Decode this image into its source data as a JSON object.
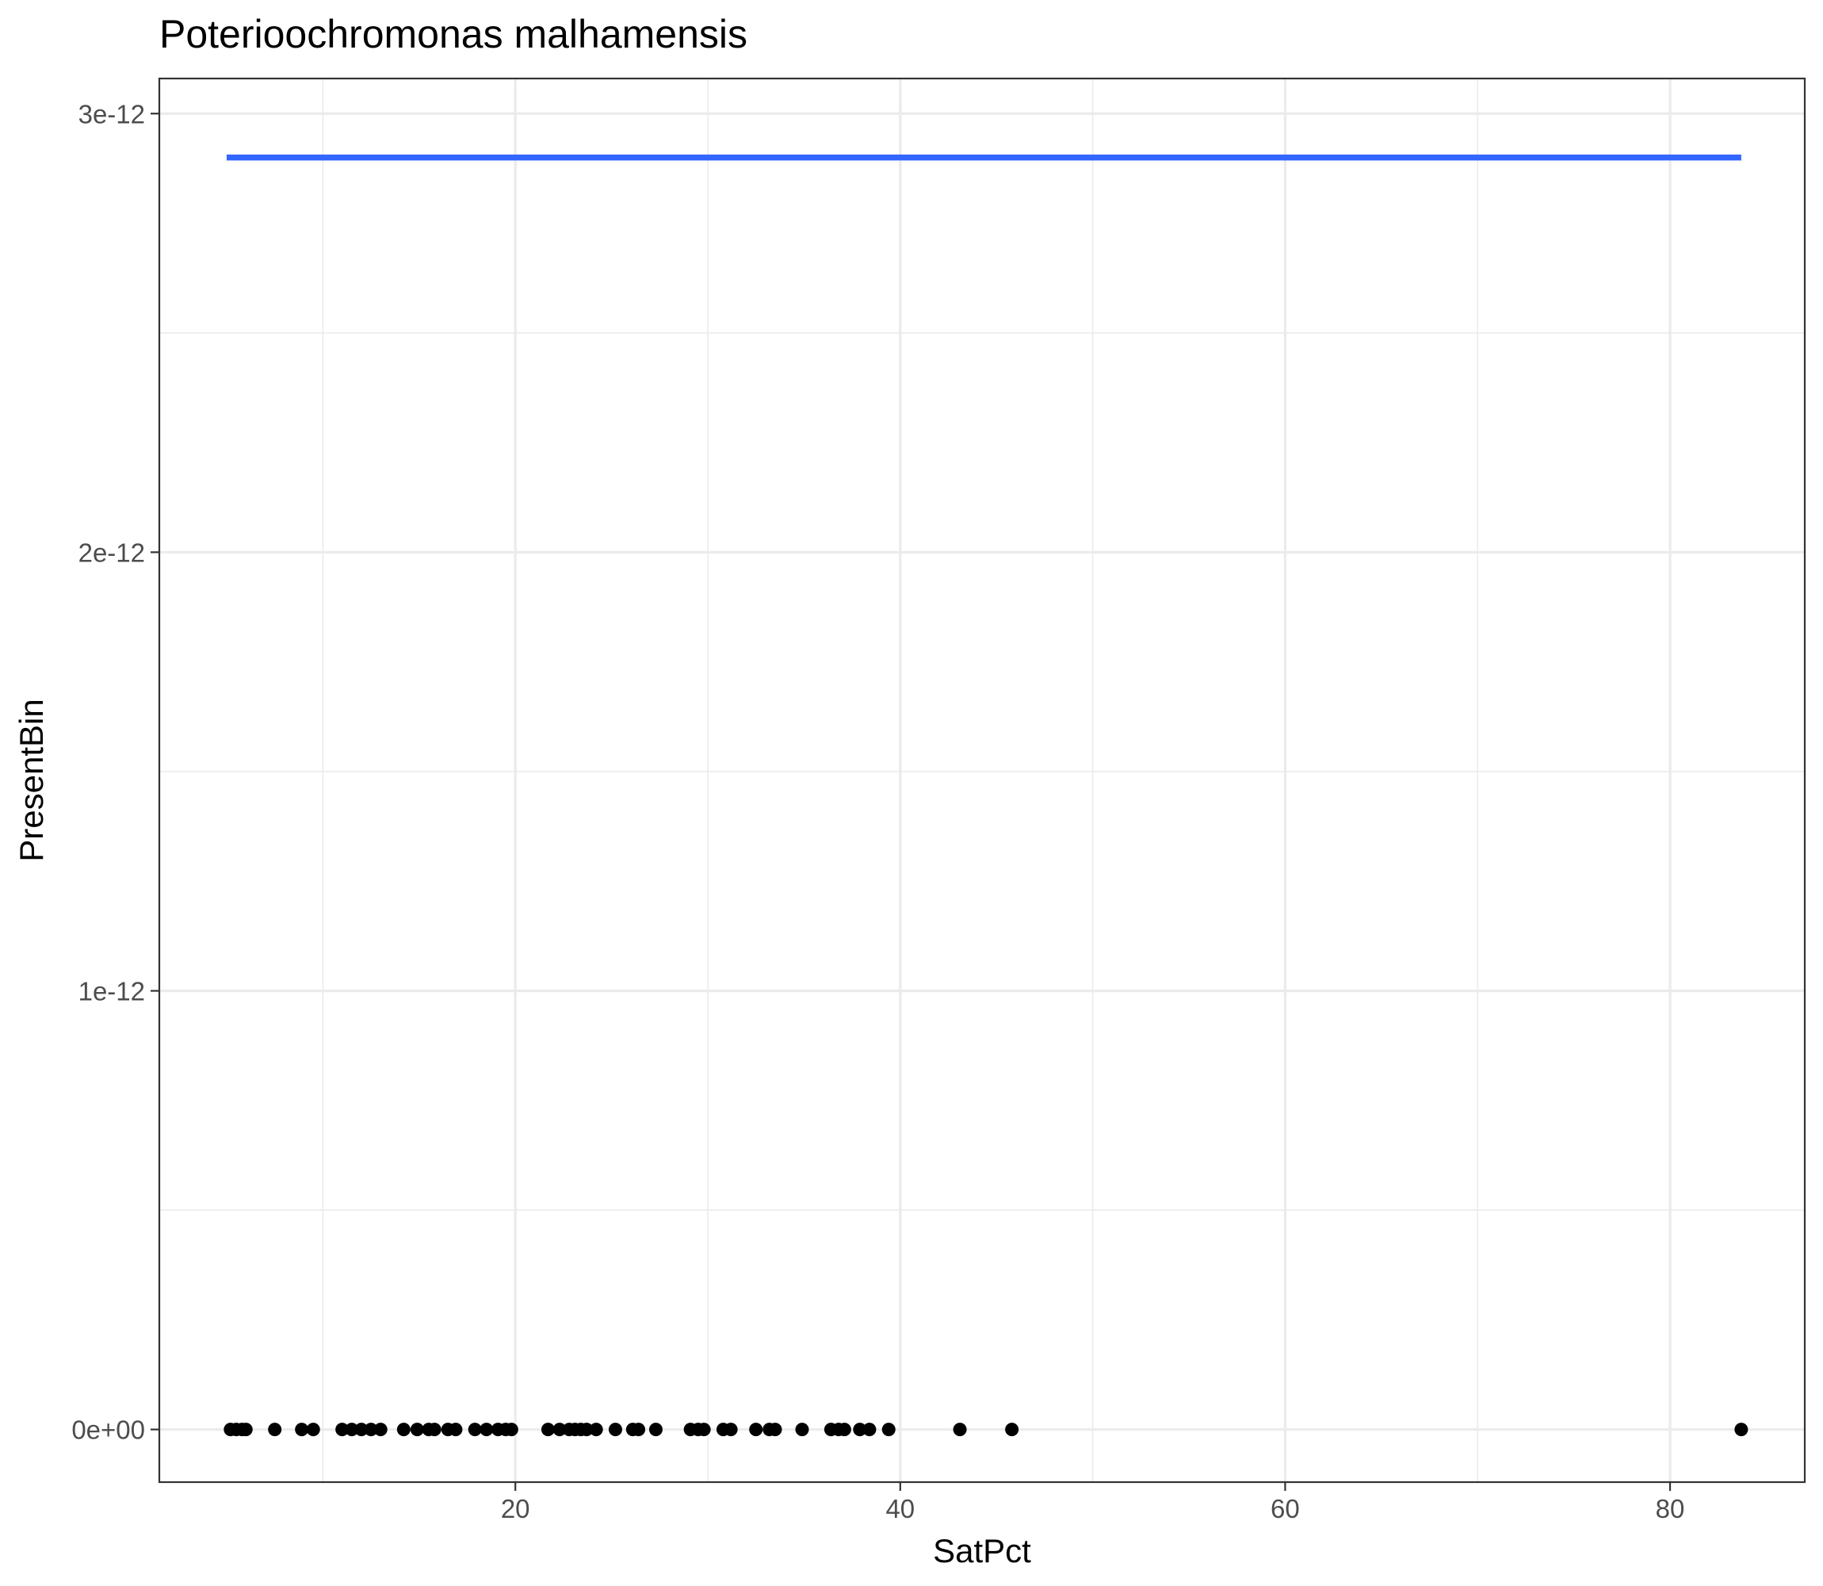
{
  "chart_data": {
    "type": "scatter",
    "title": "Poterioochromonas malhamensis",
    "xlabel": "SatPct",
    "ylabel": "PresentBin",
    "xlim": [
      1.5,
      87.0
    ],
    "ylim": [
      -1.2e-13,
      3.08e-12
    ],
    "x_ticks": [
      20,
      40,
      60,
      80
    ],
    "x_tick_labels": [
      "20",
      "40",
      "60",
      "80"
    ],
    "x_minor_ticks": [
      10,
      30,
      50,
      70
    ],
    "y_ticks": [
      0,
      1e-12,
      2e-12,
      3e-12
    ],
    "y_tick_labels": [
      "0e+00",
      "1e-12",
      "2e-12",
      "3e-12"
    ],
    "y_minor_ticks": [
      5e-13,
      1.5e-12,
      2.5e-12
    ],
    "grid": true,
    "points": {
      "color": "#000000",
      "x": [
        5.2,
        5.5,
        5.8,
        6.0,
        7.5,
        8.9,
        9.5,
        11.0,
        11.5,
        12.0,
        12.5,
        13.0,
        14.2,
        14.9,
        15.5,
        15.8,
        16.5,
        16.9,
        17.9,
        18.5,
        19.1,
        19.5,
        19.8,
        21.7,
        22.3,
        22.8,
        23.1,
        23.4,
        23.7,
        24.2,
        25.2,
        26.1,
        26.4,
        27.3,
        29.1,
        29.5,
        29.8,
        30.8,
        31.2,
        32.5,
        33.2,
        33.5,
        34.9,
        36.4,
        36.8,
        37.1,
        37.9,
        38.4,
        39.4,
        43.1,
        45.8,
        83.7
      ],
      "y": [
        0,
        0,
        0,
        0,
        0,
        0,
        0,
        0,
        0,
        0,
        0,
        0,
        0,
        0,
        0,
        0,
        0,
        0,
        0,
        0,
        0,
        0,
        0,
        0,
        0,
        0,
        0,
        0,
        0,
        0,
        0,
        0,
        0,
        0,
        0,
        0,
        0,
        0,
        0,
        0,
        0,
        0,
        0,
        0,
        0,
        0,
        0,
        0,
        0,
        0,
        0,
        0
      ]
    },
    "fit_line": {
      "color": "#3366FF",
      "x": [
        5.0,
        83.7
      ],
      "y": [
        2.9e-12,
        2.9e-12
      ]
    }
  }
}
